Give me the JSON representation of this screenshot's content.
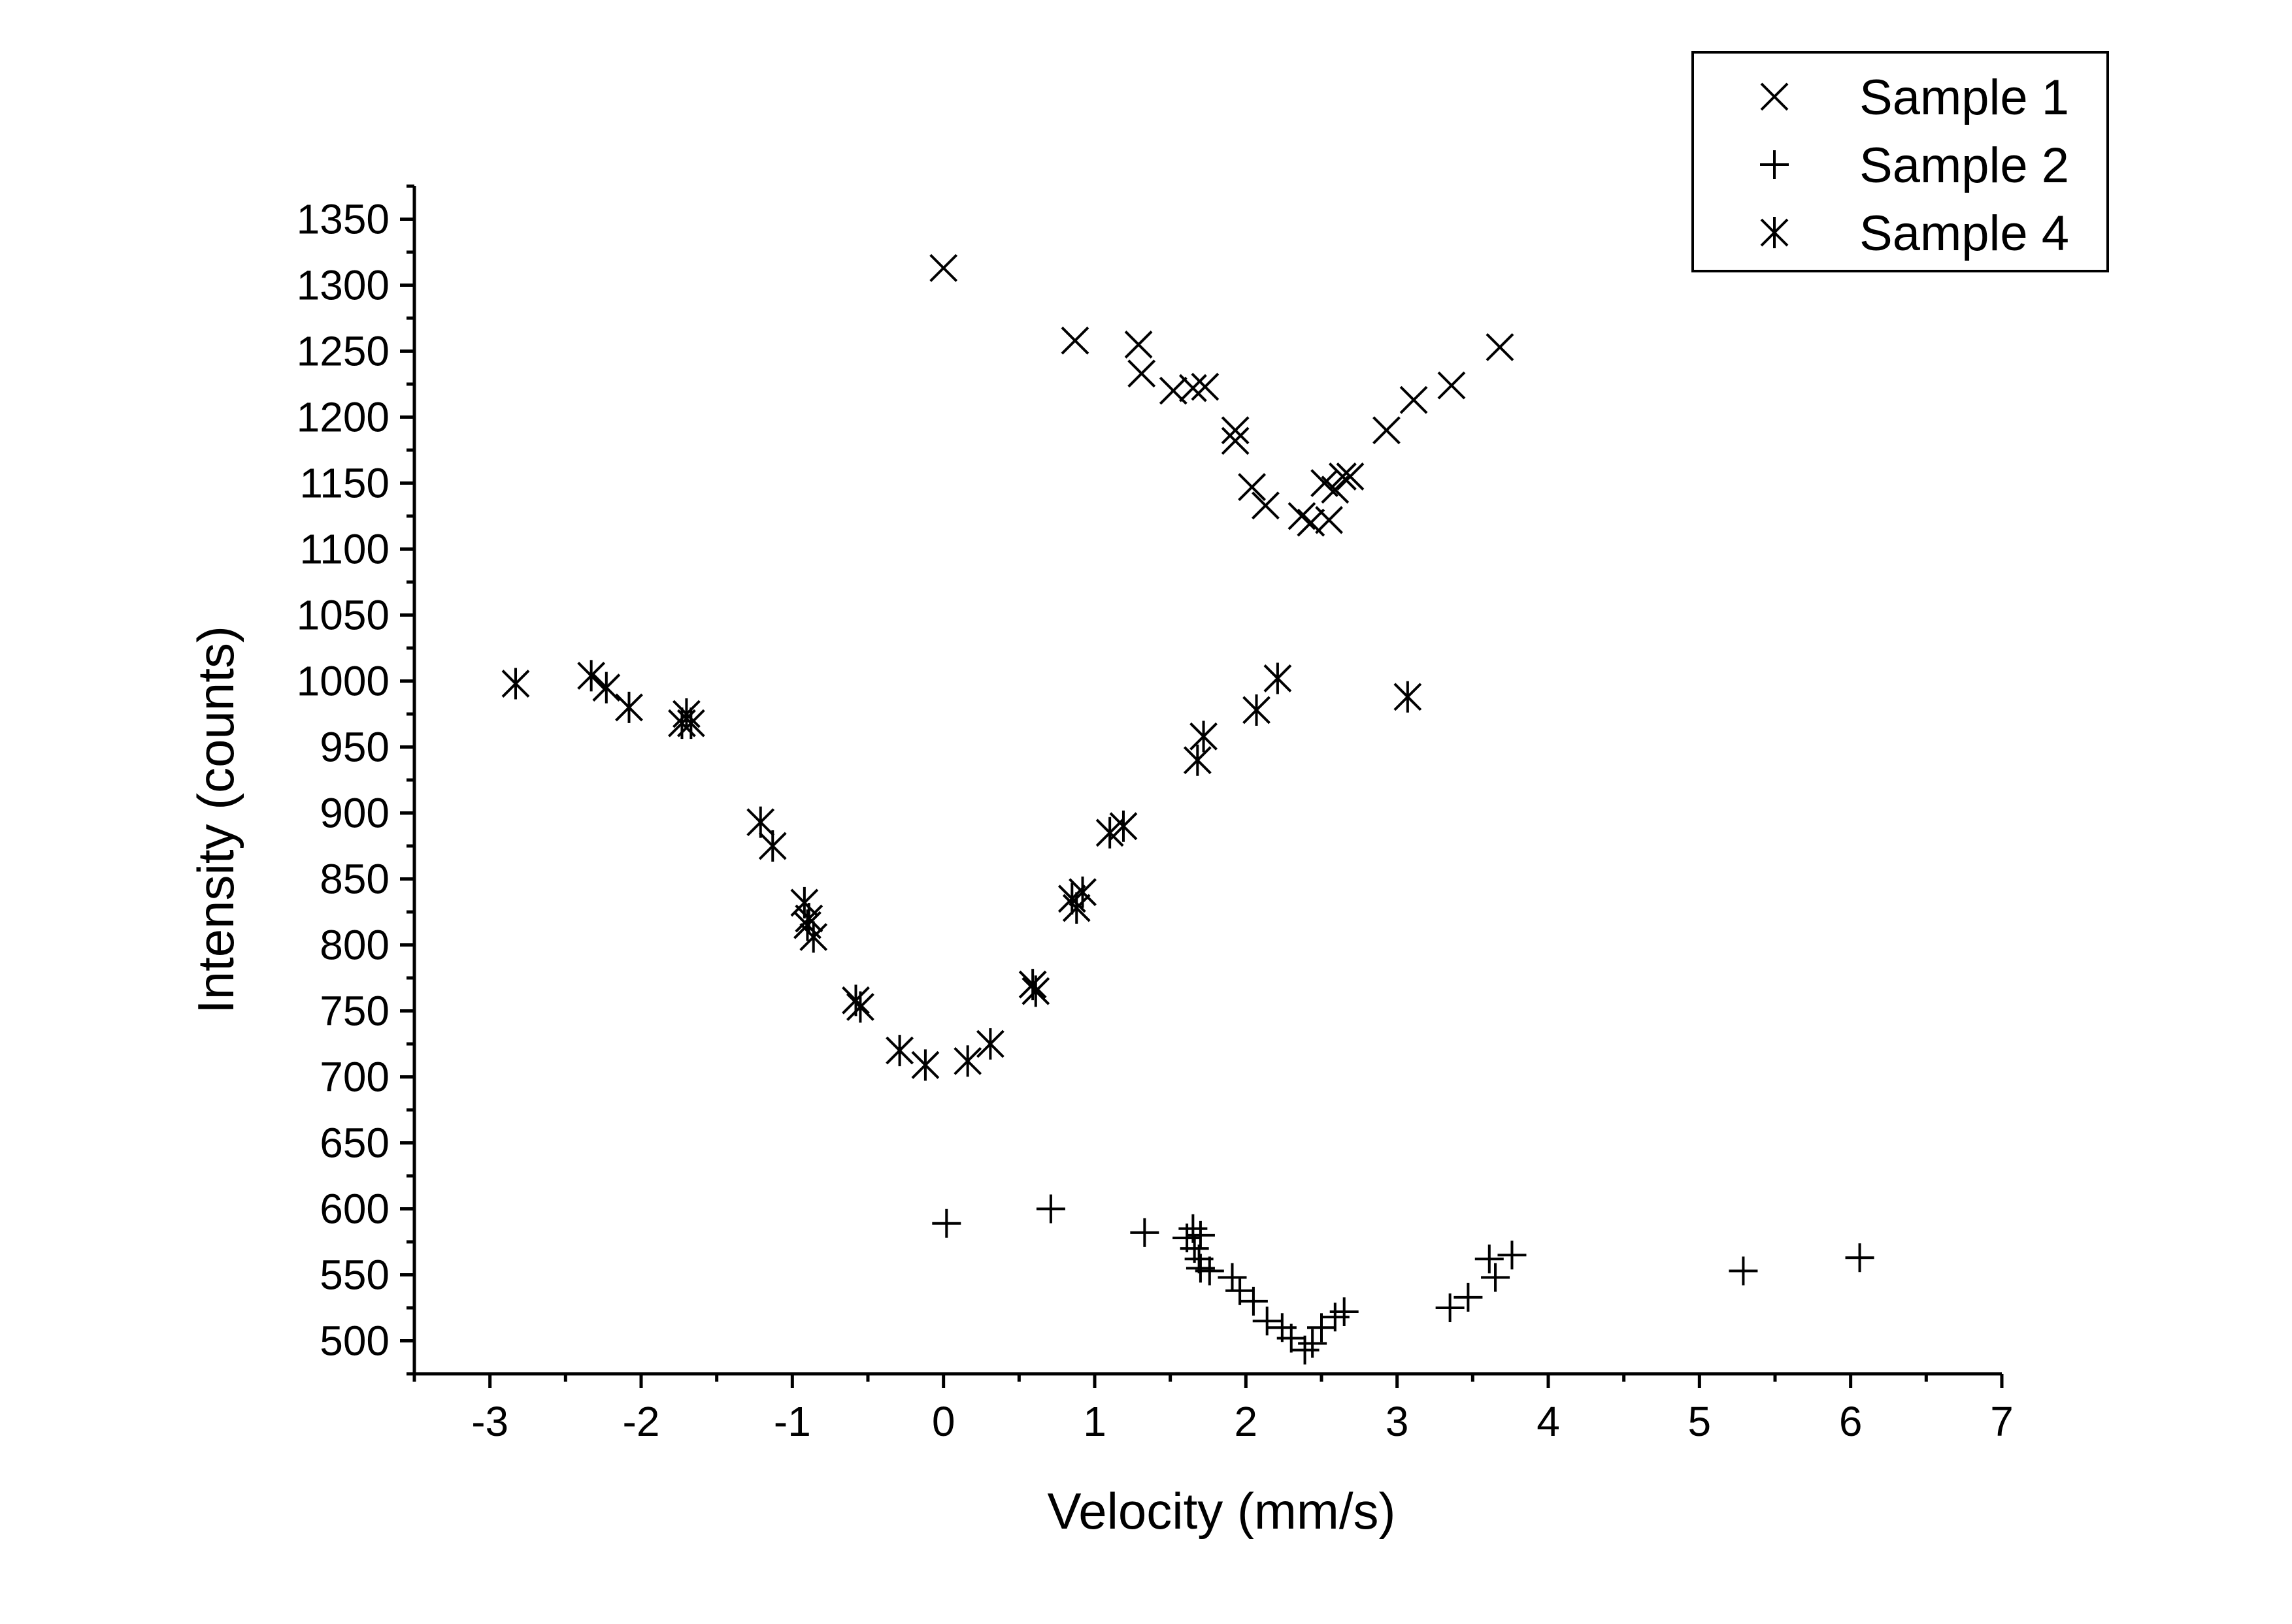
{
  "chart_data": {
    "type": "scatter",
    "title": "",
    "xlabel": "Velocity (mm/s)",
    "ylabel": "Intensity (counts)",
    "xlim": [
      -3.5,
      7
    ],
    "ylim": [
      475,
      1375
    ],
    "x_ticks": [
      "-3",
      "-2",
      "-1",
      "0",
      "1",
      "2",
      "3",
      "4",
      "5",
      "6",
      "7"
    ],
    "y_ticks": [
      "500",
      "550",
      "600",
      "650",
      "700",
      "750",
      "800",
      "850",
      "900",
      "950",
      "1000",
      "1050",
      "1100",
      "1150",
      "1200",
      "1250",
      "1300",
      "1350"
    ],
    "grid": false,
    "legend_position": "top-right",
    "series": [
      {
        "name": "Sample 1",
        "marker": "x",
        "color": "#000000",
        "x": [
          0.0,
          0.87,
          1.29,
          1.31,
          1.52,
          1.65,
          1.73,
          1.93,
          1.93,
          2.04,
          2.13,
          2.37,
          2.43,
          2.52,
          2.55,
          2.59,
          2.64,
          2.69,
          2.93,
          3.11,
          3.36,
          3.68
        ],
        "y": [
          1313,
          1258,
          1255,
          1233,
          1220,
          1222,
          1223,
          1190,
          1182,
          1147,
          1133,
          1125,
          1120,
          1150,
          1122,
          1145,
          1155,
          1155,
          1190,
          1213,
          1224,
          1253
        ]
      },
      {
        "name": "Sample 2",
        "marker": "+",
        "color": "#000000",
        "x": [
          0.02,
          0.71,
          1.33,
          1.61,
          1.65,
          1.66,
          1.69,
          1.7,
          1.7,
          1.76,
          1.91,
          1.96,
          2.05,
          2.14,
          2.24,
          2.3,
          2.39,
          2.44,
          2.5,
          2.59,
          2.65,
          3.35,
          3.47,
          3.61,
          3.65,
          3.76,
          5.29,
          6.06
        ],
        "y": [
          589,
          600,
          582,
          578,
          585,
          570,
          562,
          555,
          580,
          553,
          548,
          538,
          530,
          515,
          510,
          502,
          493,
          498,
          510,
          518,
          522,
          525,
          533,
          562,
          548,
          565,
          553,
          563
        ]
      },
      {
        "name": "Sample 4",
        "marker": "asterisk",
        "color": "#000000",
        "x": [
          -2.83,
          -2.33,
          -2.23,
          -2.08,
          -1.73,
          -1.7,
          -1.67,
          -1.21,
          -1.13,
          -0.92,
          -0.9,
          -0.89,
          -0.86,
          -0.58,
          -0.55,
          -0.29,
          -0.12,
          0.16,
          0.31,
          0.59,
          0.61,
          0.85,
          0.88,
          0.92,
          1.1,
          1.19,
          1.68,
          1.72,
          2.07,
          2.21,
          3.07
        ],
        "y": [
          998,
          1004,
          995,
          980,
          968,
          975,
          968,
          893,
          875,
          832,
          815,
          820,
          806,
          758,
          753,
          720,
          709,
          712,
          725,
          770,
          765,
          835,
          828,
          840,
          885,
          890,
          940,
          958,
          978,
          1002,
          988
        ]
      }
    ]
  }
}
